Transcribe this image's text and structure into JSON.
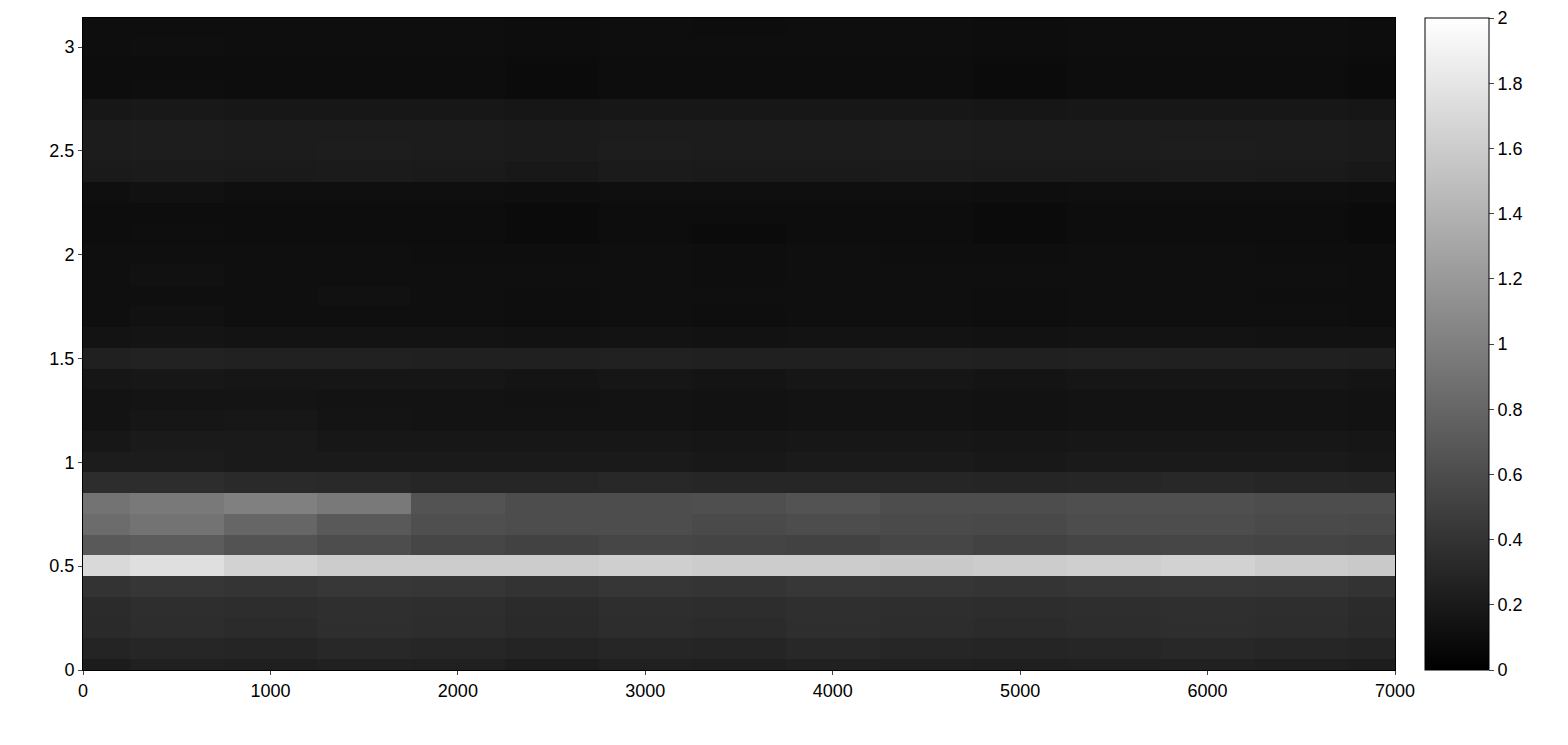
{
  "chart_data": {
    "type": "heatmap",
    "x": [
      0,
      500,
      1000,
      1500,
      2000,
      2500,
      3000,
      3500,
      4000,
      4500,
      5000,
      5500,
      6000,
      6500,
      7000
    ],
    "y": [
      0,
      0.1,
      0.2,
      0.3,
      0.4,
      0.5,
      0.6,
      0.7,
      0.8,
      0.9,
      1.0,
      1.1,
      1.2,
      1.3,
      1.4,
      1.5,
      1.6,
      1.7,
      1.8,
      1.9,
      2.0,
      2.1,
      2.2,
      2.3,
      2.4,
      2.5,
      2.6,
      2.7,
      2.8,
      2.9,
      3.0,
      3.1
    ],
    "z": [
      [
        0.22,
        0.25,
        0.24,
        0.26,
        0.25,
        0.23,
        0.25,
        0.24,
        0.26,
        0.25,
        0.24,
        0.25,
        0.26,
        0.24,
        0.23
      ],
      [
        0.28,
        0.3,
        0.29,
        0.31,
        0.3,
        0.28,
        0.3,
        0.29,
        0.31,
        0.3,
        0.29,
        0.3,
        0.31,
        0.3,
        0.28
      ],
      [
        0.33,
        0.35,
        0.34,
        0.36,
        0.35,
        0.33,
        0.35,
        0.34,
        0.36,
        0.35,
        0.34,
        0.35,
        0.36,
        0.35,
        0.33
      ],
      [
        0.34,
        0.36,
        0.35,
        0.37,
        0.36,
        0.34,
        0.36,
        0.35,
        0.37,
        0.36,
        0.35,
        0.36,
        0.37,
        0.36,
        0.34
      ],
      [
        0.4,
        0.42,
        0.41,
        0.43,
        0.42,
        0.4,
        0.42,
        0.41,
        0.43,
        0.42,
        0.41,
        0.42,
        0.43,
        0.42,
        0.4
      ],
      [
        1.7,
        1.75,
        1.65,
        1.6,
        1.6,
        1.6,
        1.62,
        1.6,
        1.6,
        1.58,
        1.6,
        1.62,
        1.65,
        1.6,
        1.58
      ],
      [
        0.7,
        0.72,
        0.65,
        0.6,
        0.55,
        0.52,
        0.55,
        0.53,
        0.52,
        0.55,
        0.52,
        0.54,
        0.55,
        0.53,
        0.52
      ],
      [
        0.85,
        0.9,
        0.8,
        0.7,
        0.62,
        0.6,
        0.6,
        0.58,
        0.6,
        0.58,
        0.57,
        0.6,
        0.6,
        0.58,
        0.57
      ],
      [
        0.9,
        0.95,
        1.0,
        0.95,
        0.65,
        0.6,
        0.6,
        0.62,
        0.65,
        0.6,
        0.6,
        0.62,
        0.62,
        0.6,
        0.6
      ],
      [
        0.35,
        0.35,
        0.33,
        0.32,
        0.3,
        0.3,
        0.31,
        0.3,
        0.3,
        0.3,
        0.29,
        0.3,
        0.31,
        0.3,
        0.29
      ],
      [
        0.22,
        0.22,
        0.2,
        0.2,
        0.2,
        0.2,
        0.2,
        0.19,
        0.2,
        0.2,
        0.19,
        0.2,
        0.2,
        0.2,
        0.19
      ],
      [
        0.18,
        0.2,
        0.2,
        0.18,
        0.18,
        0.18,
        0.18,
        0.17,
        0.18,
        0.18,
        0.17,
        0.18,
        0.18,
        0.18,
        0.17
      ],
      [
        0.15,
        0.17,
        0.18,
        0.16,
        0.15,
        0.15,
        0.15,
        0.14,
        0.15,
        0.15,
        0.14,
        0.15,
        0.15,
        0.15,
        0.14
      ],
      [
        0.15,
        0.16,
        0.16,
        0.15,
        0.15,
        0.14,
        0.15,
        0.14,
        0.15,
        0.15,
        0.14,
        0.15,
        0.15,
        0.15,
        0.14
      ],
      [
        0.17,
        0.18,
        0.17,
        0.17,
        0.17,
        0.16,
        0.17,
        0.16,
        0.17,
        0.17,
        0.16,
        0.17,
        0.17,
        0.17,
        0.16
      ],
      [
        0.25,
        0.27,
        0.26,
        0.26,
        0.25,
        0.25,
        0.26,
        0.25,
        0.25,
        0.26,
        0.25,
        0.26,
        0.25,
        0.25,
        0.24
      ],
      [
        0.15,
        0.16,
        0.15,
        0.15,
        0.15,
        0.14,
        0.15,
        0.14,
        0.15,
        0.15,
        0.14,
        0.15,
        0.15,
        0.14,
        0.14
      ],
      [
        0.12,
        0.13,
        0.12,
        0.12,
        0.12,
        0.11,
        0.12,
        0.11,
        0.12,
        0.12,
        0.11,
        0.12,
        0.12,
        0.12,
        0.11
      ],
      [
        0.12,
        0.12,
        0.12,
        0.13,
        0.12,
        0.11,
        0.12,
        0.12,
        0.12,
        0.12,
        0.11,
        0.12,
        0.12,
        0.11,
        0.11
      ],
      [
        0.12,
        0.13,
        0.12,
        0.12,
        0.12,
        0.12,
        0.12,
        0.11,
        0.12,
        0.12,
        0.12,
        0.12,
        0.12,
        0.12,
        0.11
      ],
      [
        0.12,
        0.12,
        0.12,
        0.12,
        0.11,
        0.11,
        0.12,
        0.11,
        0.12,
        0.11,
        0.11,
        0.12,
        0.12,
        0.11,
        0.11
      ],
      [
        0.1,
        0.11,
        0.1,
        0.1,
        0.1,
        0.09,
        0.1,
        0.09,
        0.1,
        0.1,
        0.09,
        0.1,
        0.1,
        0.1,
        0.09
      ],
      [
        0.1,
        0.1,
        0.1,
        0.1,
        0.1,
        0.09,
        0.1,
        0.1,
        0.1,
        0.1,
        0.09,
        0.1,
        0.1,
        0.1,
        0.09
      ],
      [
        0.12,
        0.13,
        0.12,
        0.12,
        0.12,
        0.11,
        0.12,
        0.12,
        0.12,
        0.12,
        0.11,
        0.12,
        0.12,
        0.12,
        0.11
      ],
      [
        0.2,
        0.21,
        0.2,
        0.21,
        0.2,
        0.19,
        0.21,
        0.2,
        0.2,
        0.21,
        0.2,
        0.2,
        0.21,
        0.2,
        0.19
      ],
      [
        0.22,
        0.23,
        0.22,
        0.23,
        0.22,
        0.21,
        0.23,
        0.22,
        0.22,
        0.23,
        0.22,
        0.22,
        0.23,
        0.22,
        0.21
      ],
      [
        0.22,
        0.23,
        0.22,
        0.22,
        0.22,
        0.21,
        0.22,
        0.22,
        0.22,
        0.23,
        0.22,
        0.22,
        0.22,
        0.22,
        0.21
      ],
      [
        0.18,
        0.19,
        0.18,
        0.18,
        0.18,
        0.17,
        0.18,
        0.18,
        0.18,
        0.18,
        0.17,
        0.18,
        0.18,
        0.18,
        0.17
      ],
      [
        0.1,
        0.11,
        0.1,
        0.1,
        0.1,
        0.09,
        0.1,
        0.1,
        0.1,
        0.1,
        0.09,
        0.1,
        0.1,
        0.1,
        0.09
      ],
      [
        0.1,
        0.1,
        0.1,
        0.1,
        0.1,
        0.09,
        0.1,
        0.1,
        0.1,
        0.1,
        0.09,
        0.1,
        0.1,
        0.1,
        0.09
      ],
      [
        0.11,
        0.12,
        0.11,
        0.11,
        0.11,
        0.1,
        0.11,
        0.11,
        0.11,
        0.11,
        0.1,
        0.11,
        0.11,
        0.11,
        0.1
      ],
      [
        0.11,
        0.11,
        0.11,
        0.11,
        0.11,
        0.1,
        0.11,
        0.1,
        0.11,
        0.11,
        0.1,
        0.11,
        0.11,
        0.11,
        0.1
      ]
    ],
    "xlim": [
      0,
      7000
    ],
    "xticks": [
      0,
      1000,
      2000,
      3000,
      4000,
      5000,
      6000,
      7000
    ],
    "ylim": [
      0,
      3.14
    ],
    "yticks": [
      0,
      0.5,
      1,
      1.5,
      2,
      2.5,
      3
    ],
    "zlim": [
      0,
      2
    ],
    "zticks": [
      0,
      0.2,
      0.4,
      0.6,
      0.8,
      1,
      1.2,
      1.4,
      1.6,
      1.8,
      2
    ]
  }
}
